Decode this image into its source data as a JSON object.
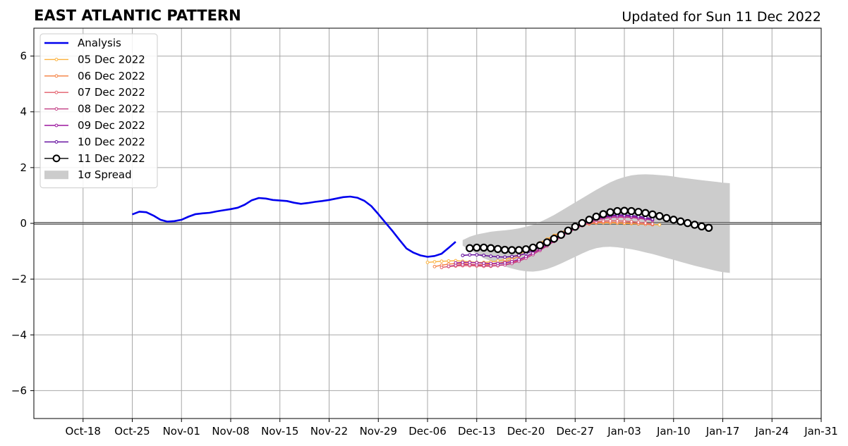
{
  "header": {
    "title": "EAST ATLANTIC PATTERN",
    "updated": "Updated for Sun 11 Dec 2022"
  },
  "chart_data": {
    "type": "line",
    "title": "EAST ATLANTIC PATTERN",
    "xlim": [
      "2022-10-11",
      "2023-01-31"
    ],
    "ylim": [
      -7,
      7
    ],
    "grid": true,
    "legend_position": "top-left",
    "x_ticks": [
      {
        "date": "2022-10-18",
        "label": "Oct-18"
      },
      {
        "date": "2022-10-25",
        "label": "Oct-25"
      },
      {
        "date": "2022-11-01",
        "label": "Nov-01"
      },
      {
        "date": "2022-11-08",
        "label": "Nov-08"
      },
      {
        "date": "2022-11-15",
        "label": "Nov-15"
      },
      {
        "date": "2022-11-22",
        "label": "Nov-22"
      },
      {
        "date": "2022-11-29",
        "label": "Nov-29"
      },
      {
        "date": "2022-12-06",
        "label": "Dec-06"
      },
      {
        "date": "2022-12-13",
        "label": "Dec-13"
      },
      {
        "date": "2022-12-20",
        "label": "Dec-20"
      },
      {
        "date": "2022-12-27",
        "label": "Dec-27"
      },
      {
        "date": "2023-01-03",
        "label": "Jan-03"
      },
      {
        "date": "2023-01-10",
        "label": "Jan-10"
      },
      {
        "date": "2023-01-17",
        "label": "Jan-17"
      },
      {
        "date": "2023-01-24",
        "label": "Jan-24"
      },
      {
        "date": "2023-01-31",
        "label": "Jan-31"
      }
    ],
    "y_ticks": [
      {
        "value": 6,
        "label": "6"
      },
      {
        "value": 4,
        "label": "4"
      },
      {
        "value": 2,
        "label": "2"
      },
      {
        "value": 0,
        "label": "0"
      },
      {
        "value": -2,
        "label": "−2"
      },
      {
        "value": -4,
        "label": "−4"
      },
      {
        "value": -6,
        "label": "−6"
      }
    ],
    "analysis": {
      "name": "Analysis",
      "color": "#0000ee",
      "start_date": "2022-10-25",
      "values": [
        0.32,
        0.42,
        0.4,
        0.28,
        0.13,
        0.06,
        0.08,
        0.13,
        0.24,
        0.33,
        0.36,
        0.38,
        0.43,
        0.47,
        0.51,
        0.56,
        0.67,
        0.83,
        0.91,
        0.89,
        0.84,
        0.82,
        0.8,
        0.74,
        0.7,
        0.73,
        0.77,
        0.8,
        0.84,
        0.89,
        0.94,
        0.96,
        0.92,
        0.81,
        0.62,
        0.33,
        0.03,
        -0.27,
        -0.59,
        -0.9,
        -1.05,
        -1.15,
        -1.2,
        -1.17,
        -1.09,
        -0.88,
        -0.66
      ]
    },
    "forecasts": [
      {
        "name": "05 Dec 2022",
        "color": "#fbb13c",
        "start_date": "2022-12-06",
        "values": [
          -1.4,
          -1.38,
          -1.36,
          -1.35,
          -1.34,
          -1.36,
          -1.38,
          -1.4,
          -1.4,
          -1.38,
          -1.35,
          -1.3,
          -1.22,
          -1.12,
          -0.98,
          -0.84,
          -0.7,
          -0.56,
          -0.43,
          -0.32,
          -0.22,
          -0.13,
          -0.07,
          -0.02,
          0.01,
          0.02,
          0.02,
          0.01,
          0.0,
          -0.01,
          -0.02,
          -0.03,
          -0.04,
          -0.05
        ]
      },
      {
        "name": "06 Dec 2022",
        "color": "#f47e3e",
        "start_date": "2022-12-07",
        "values": [
          -1.55,
          -1.5,
          -1.46,
          -1.44,
          -1.44,
          -1.46,
          -1.48,
          -1.48,
          -1.47,
          -1.44,
          -1.38,
          -1.3,
          -1.18,
          -1.05,
          -0.9,
          -0.75,
          -0.6,
          -0.46,
          -0.33,
          -0.22,
          -0.13,
          -0.06,
          -0.01,
          0.02,
          0.04,
          0.04,
          0.03,
          0.02,
          0.01,
          -0.01,
          -0.03,
          -0.05
        ]
      },
      {
        "name": "07 Dec 2022",
        "color": "#e35d6a",
        "start_date": "2022-12-08",
        "values": [
          -1.58,
          -1.55,
          -1.53,
          -1.52,
          -1.52,
          -1.53,
          -1.54,
          -1.54,
          -1.52,
          -1.48,
          -1.42,
          -1.32,
          -1.2,
          -1.06,
          -0.91,
          -0.75,
          -0.59,
          -0.44,
          -0.3,
          -0.18,
          -0.08,
          0.0,
          0.05,
          0.08,
          0.09,
          0.09,
          0.08,
          0.06,
          0.04,
          0.01,
          -0.02
        ]
      },
      {
        "name": "08 Dec 2022",
        "color": "#c13b82",
        "start_date": "2022-12-09",
        "values": [
          -1.54,
          -1.5,
          -1.48,
          -1.48,
          -1.49,
          -1.51,
          -1.52,
          -1.51,
          -1.49,
          -1.44,
          -1.36,
          -1.25,
          -1.12,
          -0.97,
          -0.81,
          -0.65,
          -0.49,
          -0.34,
          -0.2,
          -0.08,
          0.03,
          0.11,
          0.17,
          0.21,
          0.22,
          0.22,
          0.21,
          0.18,
          0.15,
          0.11
        ]
      },
      {
        "name": "09 Dec 2022",
        "color": "#9b179e",
        "start_date": "2022-12-10",
        "values": [
          -1.42,
          -1.4,
          -1.4,
          -1.41,
          -1.43,
          -1.44,
          -1.44,
          -1.42,
          -1.37,
          -1.3,
          -1.19,
          -1.07,
          -0.93,
          -0.77,
          -0.61,
          -0.45,
          -0.3,
          -0.16,
          -0.03,
          0.07,
          0.15,
          0.21,
          0.25,
          0.26,
          0.26,
          0.24,
          0.21,
          0.17,
          0.12
        ]
      },
      {
        "name": "10 Dec 2022",
        "color": "#5c0199",
        "start_date": "2022-12-11",
        "values": [
          -1.15,
          -1.13,
          -1.13,
          -1.15,
          -1.18,
          -1.2,
          -1.21,
          -1.19,
          -1.15,
          -1.08,
          -0.98,
          -0.86,
          -0.72,
          -0.57,
          -0.41,
          -0.26,
          -0.12,
          0.0,
          0.1,
          0.18,
          0.24,
          0.28,
          0.3,
          0.3,
          0.28,
          0.25,
          0.21,
          0.16
        ]
      }
    ],
    "latest": {
      "name": "11 Dec 2022",
      "color": "#000000",
      "start_date": "2022-12-12",
      "values": [
        -0.89,
        -0.87,
        -0.87,
        -0.89,
        -0.92,
        -0.95,
        -0.96,
        -0.96,
        -0.93,
        -0.87,
        -0.79,
        -0.68,
        -0.55,
        -0.41,
        -0.26,
        -0.12,
        0.01,
        0.13,
        0.24,
        0.33,
        0.4,
        0.44,
        0.45,
        0.44,
        0.41,
        0.37,
        0.32,
        0.26,
        0.19,
        0.13,
        0.07,
        0.01,
        -0.05,
        -0.11,
        -0.16
      ]
    },
    "spread": {
      "name": "1σ Spread",
      "color": "#cccccc",
      "start_date": "2022-12-11",
      "upper": [
        -0.6,
        -0.48,
        -0.4,
        -0.35,
        -0.3,
        -0.27,
        -0.25,
        -0.22,
        -0.18,
        -0.12,
        -0.05,
        0.05,
        0.17,
        0.3,
        0.45,
        0.6,
        0.75,
        0.9,
        1.05,
        1.2,
        1.34,
        1.47,
        1.58,
        1.66,
        1.72,
        1.75,
        1.76,
        1.75,
        1.73,
        1.71,
        1.68,
        1.64,
        1.61,
        1.58,
        1.55,
        1.52,
        1.49,
        1.46,
        1.44
      ],
      "lower": [
        -0.8,
        -0.95,
        -1.1,
        -1.25,
        -1.35,
        -1.45,
        -1.55,
        -1.62,
        -1.68,
        -1.72,
        -1.73,
        -1.7,
        -1.64,
        -1.55,
        -1.44,
        -1.32,
        -1.2,
        -1.08,
        -0.97,
        -0.89,
        -0.85,
        -0.84,
        -0.86,
        -0.89,
        -0.93,
        -0.98,
        -1.04,
        -1.1,
        -1.17,
        -1.24,
        -1.31,
        -1.38,
        -1.45,
        -1.52,
        -1.58,
        -1.64,
        -1.7,
        -1.75,
        -1.78
      ]
    },
    "legend": [
      {
        "label": "Analysis",
        "color": "#0000ee",
        "kind": "thick-line"
      },
      {
        "label": "05 Dec 2022",
        "color": "#fbb13c",
        "kind": "line-marker"
      },
      {
        "label": "06 Dec 2022",
        "color": "#f47e3e",
        "kind": "line-marker"
      },
      {
        "label": "07 Dec 2022",
        "color": "#e35d6a",
        "kind": "line-marker"
      },
      {
        "label": "08 Dec 2022",
        "color": "#c13b82",
        "kind": "line-marker"
      },
      {
        "label": "09 Dec 2022",
        "color": "#9b179e",
        "kind": "line-marker"
      },
      {
        "label": "10 Dec 2022",
        "color": "#5c0199",
        "kind": "line-marker"
      },
      {
        "label": "11 Dec 2022",
        "color": "#000000",
        "kind": "line-circle"
      },
      {
        "label": "1σ Spread",
        "color": "#cccccc",
        "kind": "patch"
      }
    ]
  }
}
